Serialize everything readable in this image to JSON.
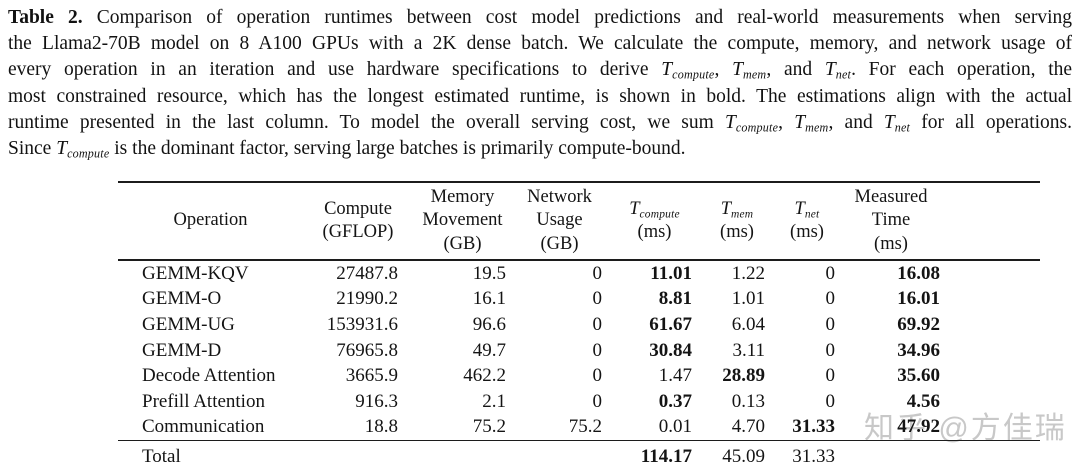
{
  "caption": {
    "lines": [
      {
        "justify": true,
        "segments": [
          {
            "text": "Table 2.",
            "bold": true
          },
          {
            "text": " Comparison of operation runtimes between cost model predictions and real-world measurements when serving"
          }
        ]
      },
      {
        "justify": true,
        "segments": [
          {
            "text": "the Llama2-70B model on 8 A100 GPUs with a 2K dense batch. We calculate the compute, memory, and network usage of"
          }
        ]
      },
      {
        "justify": true,
        "segments": [
          {
            "text": "every operation in an iteration and use hardware specifications to derive "
          },
          {
            "text": "T",
            "sub": "compute"
          },
          {
            "text": ", "
          },
          {
            "text": "T",
            "sub": "mem"
          },
          {
            "text": ", and "
          },
          {
            "text": "T",
            "sub": "net"
          },
          {
            "text": ". For each operation, the"
          }
        ]
      },
      {
        "justify": true,
        "segments": [
          {
            "text": "most constrained resource, which has the longest estimated runtime, is shown in bold. The estimations align with the actual"
          }
        ]
      },
      {
        "justify": true,
        "segments": [
          {
            "text": "runtime presented in the last column. To model the overall serving cost, we sum "
          },
          {
            "text": "T",
            "sub": "compute"
          },
          {
            "text": ", "
          },
          {
            "text": "T",
            "sub": "mem"
          },
          {
            "text": ", and "
          },
          {
            "text": "T",
            "sub": "net"
          },
          {
            "text": " for all operations."
          }
        ]
      },
      {
        "justify": false,
        "segments": [
          {
            "text": "Since "
          },
          {
            "text": "T",
            "sub": "compute"
          },
          {
            "text": " is the dominant factor, serving large batches is primarily compute-bound."
          }
        ]
      }
    ]
  },
  "table": {
    "columns": [
      {
        "id": "operation",
        "lines": [
          "Operation"
        ]
      },
      {
        "id": "compute-gflop",
        "lines": [
          "Compute",
          "(GFLOP)"
        ]
      },
      {
        "id": "memory-movement",
        "lines": [
          "Memory",
          "Movement",
          "(GB)"
        ]
      },
      {
        "id": "network-usage",
        "lines": [
          "Network",
          "Usage",
          "(GB)"
        ]
      },
      {
        "id": "t-compute",
        "lines": [
          {
            "base": "T",
            "sub": "compute"
          },
          "(ms)"
        ]
      },
      {
        "id": "t-mem",
        "lines": [
          {
            "base": "T",
            "sub": "mem"
          },
          "(ms)"
        ]
      },
      {
        "id": "t-net",
        "lines": [
          {
            "base": "T",
            "sub": "net"
          },
          "(ms)"
        ]
      },
      {
        "id": "measured-time",
        "lines": [
          "Measured",
          "Time",
          "(ms)"
        ]
      }
    ],
    "rows": [
      {
        "id": "gemm-kqv",
        "cells": [
          "GEMM-KQV",
          "27487.8",
          "19.5",
          "0",
          {
            "v": "11.01",
            "bold": true
          },
          "1.22",
          "0",
          {
            "v": "16.08",
            "bold": true
          }
        ]
      },
      {
        "id": "gemm-o",
        "cells": [
          "GEMM-O",
          "21990.2",
          "16.1",
          "0",
          {
            "v": "8.81",
            "bold": true
          },
          "1.01",
          "0",
          {
            "v": "16.01",
            "bold": true
          }
        ]
      },
      {
        "id": "gemm-ug",
        "cells": [
          "GEMM-UG",
          "153931.6",
          "96.6",
          "0",
          {
            "v": "61.67",
            "bold": true
          },
          "6.04",
          "0",
          {
            "v": "69.92",
            "bold": true
          }
        ]
      },
      {
        "id": "gemm-d",
        "cells": [
          "GEMM-D",
          "76965.8",
          "49.7",
          "0",
          {
            "v": "30.84",
            "bold": true
          },
          "3.11",
          "0",
          {
            "v": "34.96",
            "bold": true
          }
        ]
      },
      {
        "id": "decode-attention",
        "cells": [
          "Decode Attention",
          "3665.9",
          "462.2",
          "0",
          "1.47",
          {
            "v": "28.89",
            "bold": true
          },
          "0",
          {
            "v": "35.60",
            "bold": true
          }
        ]
      },
      {
        "id": "prefill-attention",
        "cells": [
          "Prefill Attention",
          "916.3",
          "2.1",
          "0",
          {
            "v": "0.37",
            "bold": true
          },
          "0.13",
          "0",
          {
            "v": "4.56",
            "bold": true
          }
        ]
      },
      {
        "id": "communication",
        "cells": [
          "Communication",
          "18.8",
          "75.2",
          "75.2",
          "0.01",
          "4.70",
          {
            "v": "31.33",
            "bold": true
          },
          {
            "v": "47.92",
            "bold": true
          }
        ]
      }
    ],
    "total_row": {
      "id": "total",
      "cells": [
        "Total",
        "",
        "",
        "",
        {
          "v": "114.17",
          "bold": true
        },
        "45.09",
        "31.33",
        ""
      ]
    }
  },
  "watermark": {
    "text": "知乎 @方佳瑞"
  }
}
